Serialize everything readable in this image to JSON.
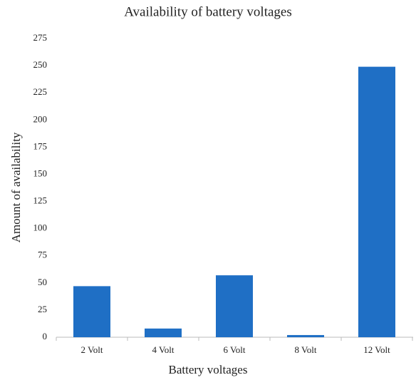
{
  "chart_data": {
    "type": "bar",
    "title": "Availability of battery voltages",
    "x_label": "Battery voltages",
    "y_label": "Amount of availability",
    "categories": [
      "2 Volt",
      "4 Volt",
      "6 Volt",
      "8 Volt",
      "12 Volt"
    ],
    "values": [
      47,
      8,
      57,
      2,
      249
    ],
    "color": "#1f6fc5",
    "ylim": [
      0,
      275
    ],
    "yticks": [
      0,
      25,
      50,
      75,
      100,
      125,
      150,
      175,
      200,
      225,
      250,
      275
    ],
    "grid": false
  }
}
